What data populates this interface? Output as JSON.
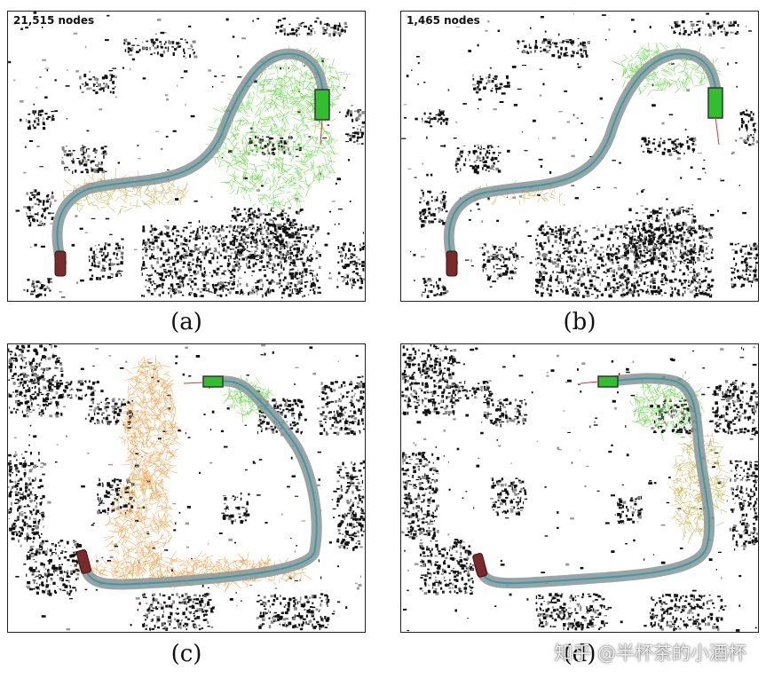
{
  "figure": {
    "panels": [
      {
        "id": "a",
        "node_count": "21,515 nodes",
        "caption": "(a)"
      },
      {
        "id": "b",
        "node_count": "1,465 nodes",
        "caption": "(b)"
      },
      {
        "id": "c",
        "node_count": "",
        "caption": "(c)"
      },
      {
        "id": "d",
        "node_count": "",
        "caption": "(d)"
      }
    ],
    "colors": {
      "path_band": "#8e9a9a",
      "path_line": "#3a9aa8",
      "tree_green": "#5fd83a",
      "tree_orange": "#f0a24a",
      "obstacle": "#111111",
      "vehicle_start": "#7a2a2a",
      "vehicle_goal": "#2fbf2f",
      "heading_line": "#e03030"
    }
  },
  "watermark": "知乎 @半杯茶的小酒杯"
}
